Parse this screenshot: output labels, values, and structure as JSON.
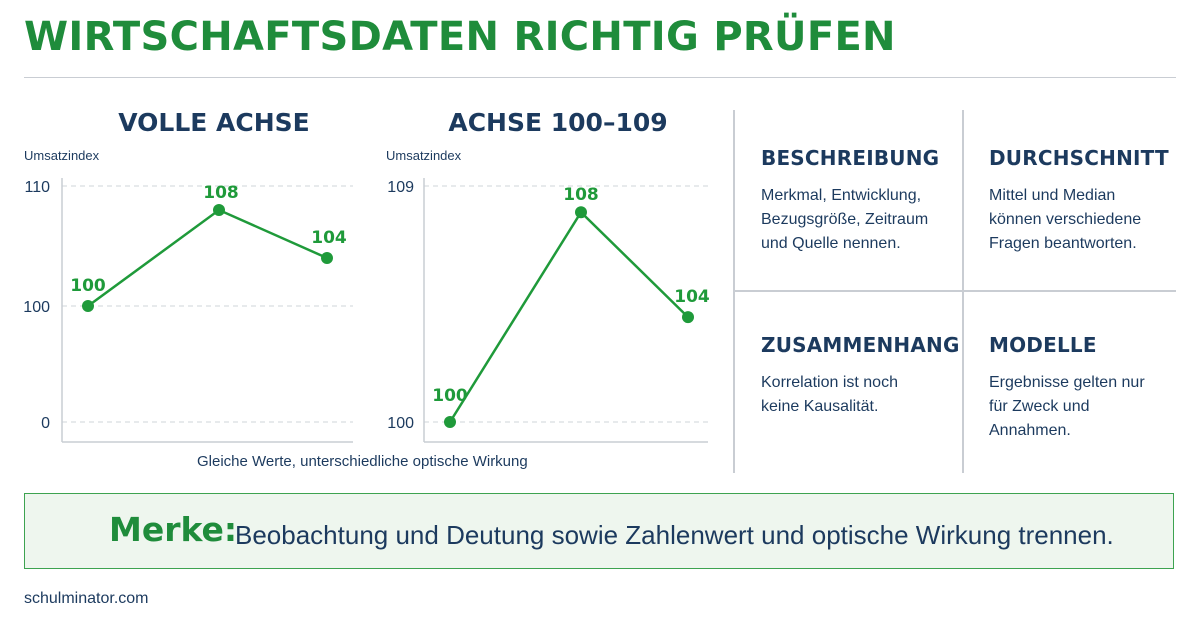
{
  "header": {
    "title": "WIRTSCHAFTSDATEN RICHTIG PRÜFEN"
  },
  "chart_data": [
    {
      "type": "line",
      "title": "VOLLE ACHSE",
      "ylabel": "Umsatzindex",
      "yticks": [
        0,
        100,
        110
      ],
      "ylim": [
        0,
        110
      ],
      "values": [
        100,
        108,
        104
      ],
      "labels": [
        "100",
        "108",
        "104"
      ],
      "grid": true
    },
    {
      "type": "line",
      "title": "ACHSE 100–109",
      "ylabel": "Umsatzindex",
      "yticks": [
        100,
        109
      ],
      "ylim": [
        100,
        109
      ],
      "values": [
        100,
        108,
        104
      ],
      "labels": [
        "100",
        "108",
        "104"
      ],
      "grid": true
    }
  ],
  "caption": "Gleiche Werte, unterschiedliche optische Wirkung",
  "cards": [
    {
      "title": "BESCHREIBUNG",
      "text": "Merkmal, Entwicklung,\nBezugsgröße, Zeitraum\nund Quelle nennen."
    },
    {
      "title": "DURCHSCHNITT",
      "text": "Mittel und Median\nkönnen verschiedene\nFragen beantworten."
    },
    {
      "title": "ZUSAMMENHANG",
      "text": "Korrelation ist noch\nkeine Kausalität."
    },
    {
      "title": "MODELLE",
      "text": "Ergebnisse gelten nur\nfür Zweck und\nAnnahmen."
    }
  ],
  "merke": {
    "label": "Merke:",
    "text": "Beobachtung und Deutung sowie Zahlenwert und optische Wirkung trennen."
  },
  "footer": {
    "text": "schulminator.com"
  },
  "colors": {
    "green": "#1f9a3a",
    "navy": "#1c3a5e",
    "grid": "#cfd4da",
    "merke_bg": "#eef6ee"
  }
}
